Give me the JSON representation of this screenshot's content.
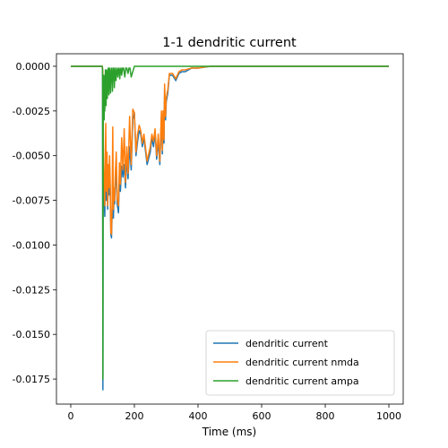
{
  "chart_data": {
    "type": "line",
    "title": "1-1 dendritic current",
    "xlabel": "Time (ms)",
    "ylabel": "",
    "xlim": [
      -45,
      1045
    ],
    "ylim": [
      -0.0189,
      0.0007
    ],
    "xticks": [
      0,
      200,
      400,
      600,
      800,
      1000
    ],
    "xtick_labels": [
      "0",
      "200",
      "400",
      "600",
      "800",
      "1000"
    ],
    "yticks": [
      0.0,
      -0.0025,
      -0.005,
      -0.0075,
      -0.01,
      -0.0125,
      -0.015,
      -0.0175
    ],
    "ytick_labels": [
      "0.0000",
      "-0.0025",
      "-0.0050",
      "-0.0075",
      "-0.0100",
      "-0.0125",
      "-0.0150",
      "-0.0175"
    ],
    "grid": false,
    "legend_position": "lower-right",
    "series": [
      {
        "name": "dendritic current",
        "color": "#1f77b4",
        "x": [
          0,
          99,
          100,
          101,
          102,
          103,
          104,
          105,
          106,
          107,
          108,
          110,
          112,
          114,
          116,
          118,
          120,
          122,
          124,
          126,
          128,
          130,
          132,
          134,
          136,
          138,
          140,
          143,
          146,
          150,
          153,
          156,
          160,
          164,
          168,
          172,
          176,
          180,
          185,
          190,
          195,
          200,
          205,
          210,
          215,
          220,
          225,
          230,
          240,
          250,
          255,
          260,
          265,
          270,
          275,
          280,
          285,
          288,
          290,
          293,
          295,
          298,
          300,
          305,
          310,
          320,
          330,
          340,
          350,
          360,
          380,
          400,
          420,
          440,
          500,
          600,
          700,
          800,
          900,
          1000
        ],
        "y": [
          0,
          0,
          -0.0002,
          -0.0181,
          -0.004,
          -0.0062,
          -0.0065,
          -0.007,
          -0.0079,
          -0.0084,
          -0.0066,
          -0.0064,
          -0.0075,
          -0.0055,
          -0.008,
          -0.006,
          -0.0072,
          -0.0056,
          -0.0068,
          -0.0094,
          -0.0096,
          -0.0083,
          -0.008,
          -0.0085,
          -0.0073,
          -0.0077,
          -0.0066,
          -0.0058,
          -0.0077,
          -0.0082,
          -0.006,
          -0.007,
          -0.0056,
          -0.0062,
          -0.0055,
          -0.0068,
          -0.005,
          -0.0063,
          -0.0045,
          -0.0058,
          -0.003,
          -0.0026,
          -0.005,
          -0.0042,
          -0.0036,
          -0.0038,
          -0.0045,
          -0.004,
          -0.0055,
          -0.0048,
          -0.004,
          -0.0045,
          -0.0037,
          -0.0052,
          -0.0042,
          -0.0055,
          -0.0028,
          -0.0049,
          -0.003,
          -0.0043,
          -0.0012,
          -0.003,
          -0.002,
          -0.0015,
          -0.0005,
          -0.0005,
          -0.0008,
          -0.0004,
          -0.0003,
          -0.0003,
          -0.0001,
          -0.0001,
          -5e-05,
          0,
          0,
          0,
          0,
          0,
          0,
          0
        ]
      },
      {
        "name": "dendritic current nmda",
        "color": "#ff7f0e",
        "x": [
          0,
          99,
          100,
          101,
          102,
          103,
          104,
          105,
          106,
          107,
          108,
          110,
          112,
          114,
          116,
          118,
          120,
          122,
          124,
          126,
          128,
          130,
          132,
          134,
          136,
          138,
          140,
          143,
          146,
          150,
          153,
          156,
          160,
          164,
          168,
          172,
          176,
          180,
          185,
          190,
          195,
          200,
          205,
          210,
          215,
          220,
          225,
          230,
          240,
          250,
          255,
          260,
          265,
          270,
          275,
          280,
          285,
          288,
          290,
          293,
          295,
          298,
          300,
          305,
          310,
          320,
          330,
          340,
          350,
          360,
          380,
          400,
          420,
          440,
          500,
          600,
          700,
          800,
          900,
          1000
        ],
        "y": [
          0,
          0,
          -0.0001,
          -0.0005,
          -0.003,
          -0.0055,
          -0.006,
          -0.0065,
          -0.0072,
          -0.0078,
          -0.006,
          -0.0032,
          -0.007,
          -0.0048,
          -0.0078,
          -0.0055,
          -0.0068,
          -0.005,
          -0.0065,
          -0.0093,
          -0.0094,
          -0.0078,
          -0.0034,
          -0.008,
          -0.0068,
          -0.0075,
          -0.006,
          -0.0048,
          -0.0074,
          -0.0078,
          -0.0054,
          -0.0066,
          -0.004,
          -0.0058,
          -0.0035,
          -0.0065,
          -0.0045,
          -0.006,
          -0.0028,
          -0.0055,
          -0.0024,
          -0.0026,
          -0.0048,
          -0.0038,
          -0.0033,
          -0.0036,
          -0.0043,
          -0.0038,
          -0.0053,
          -0.0045,
          -0.0038,
          -0.0042,
          -0.0035,
          -0.005,
          -0.0038,
          -0.0053,
          -0.0025,
          -0.0047,
          -0.0025,
          -0.0041,
          -0.001,
          -0.0028,
          -0.0018,
          -0.0013,
          -0.0004,
          -0.0004,
          -0.0007,
          -0.0003,
          -0.0002,
          -0.0002,
          -0.0001,
          -0.0001,
          -4e-05,
          0,
          0,
          0,
          0,
          0,
          0,
          0
        ]
      },
      {
        "name": "dendritic current ampa",
        "color": "#2ca02c",
        "x": [
          0,
          99,
          100,
          101,
          101.5,
          102,
          103,
          104,
          105,
          106,
          107,
          108,
          109,
          110,
          111,
          112,
          113,
          114,
          115,
          116,
          118,
          119,
          120,
          121,
          122,
          124,
          125,
          126,
          127,
          128,
          130,
          131,
          132,
          133,
          134,
          136,
          137,
          138,
          139,
          140,
          142,
          144,
          146,
          148,
          150,
          152,
          154,
          156,
          158,
          160,
          163,
          166,
          170,
          173,
          176,
          180,
          183,
          186,
          190,
          200,
          300,
          400,
          1000
        ],
        "y": [
          0,
          0,
          -0.0002,
          -0.0175,
          -0.008,
          -0.0025,
          -0.002,
          -0.0005,
          -0.003,
          -0.0012,
          -0.0025,
          -0.0008,
          -0.0002,
          -0.0008,
          -0.0022,
          -0.0011,
          -0.0002,
          -0.0006,
          -0.0018,
          -0.001,
          -0.0001,
          -0.0008,
          -0.0016,
          -0.0006,
          -0.0001,
          -0.0007,
          -0.0015,
          -0.0009,
          -0.0002,
          -0.0001,
          -0.0006,
          -0.0014,
          -0.0008,
          -0.0001,
          -0.0001,
          -0.0005,
          -0.0012,
          -0.0007,
          -0.0001,
          -0.0001,
          -0.0008,
          -0.0003,
          -0.0001,
          -0.0006,
          -0.0002,
          -0.0001,
          -0.0007,
          -0.0002,
          -0.0001,
          -0.0005,
          -0.0001,
          -0.0001,
          -0.0006,
          -0.0001,
          -0.0001,
          -0.0004,
          -0.0001,
          -0.0001,
          -0.0006,
          0,
          0,
          0,
          0
        ]
      }
    ]
  }
}
